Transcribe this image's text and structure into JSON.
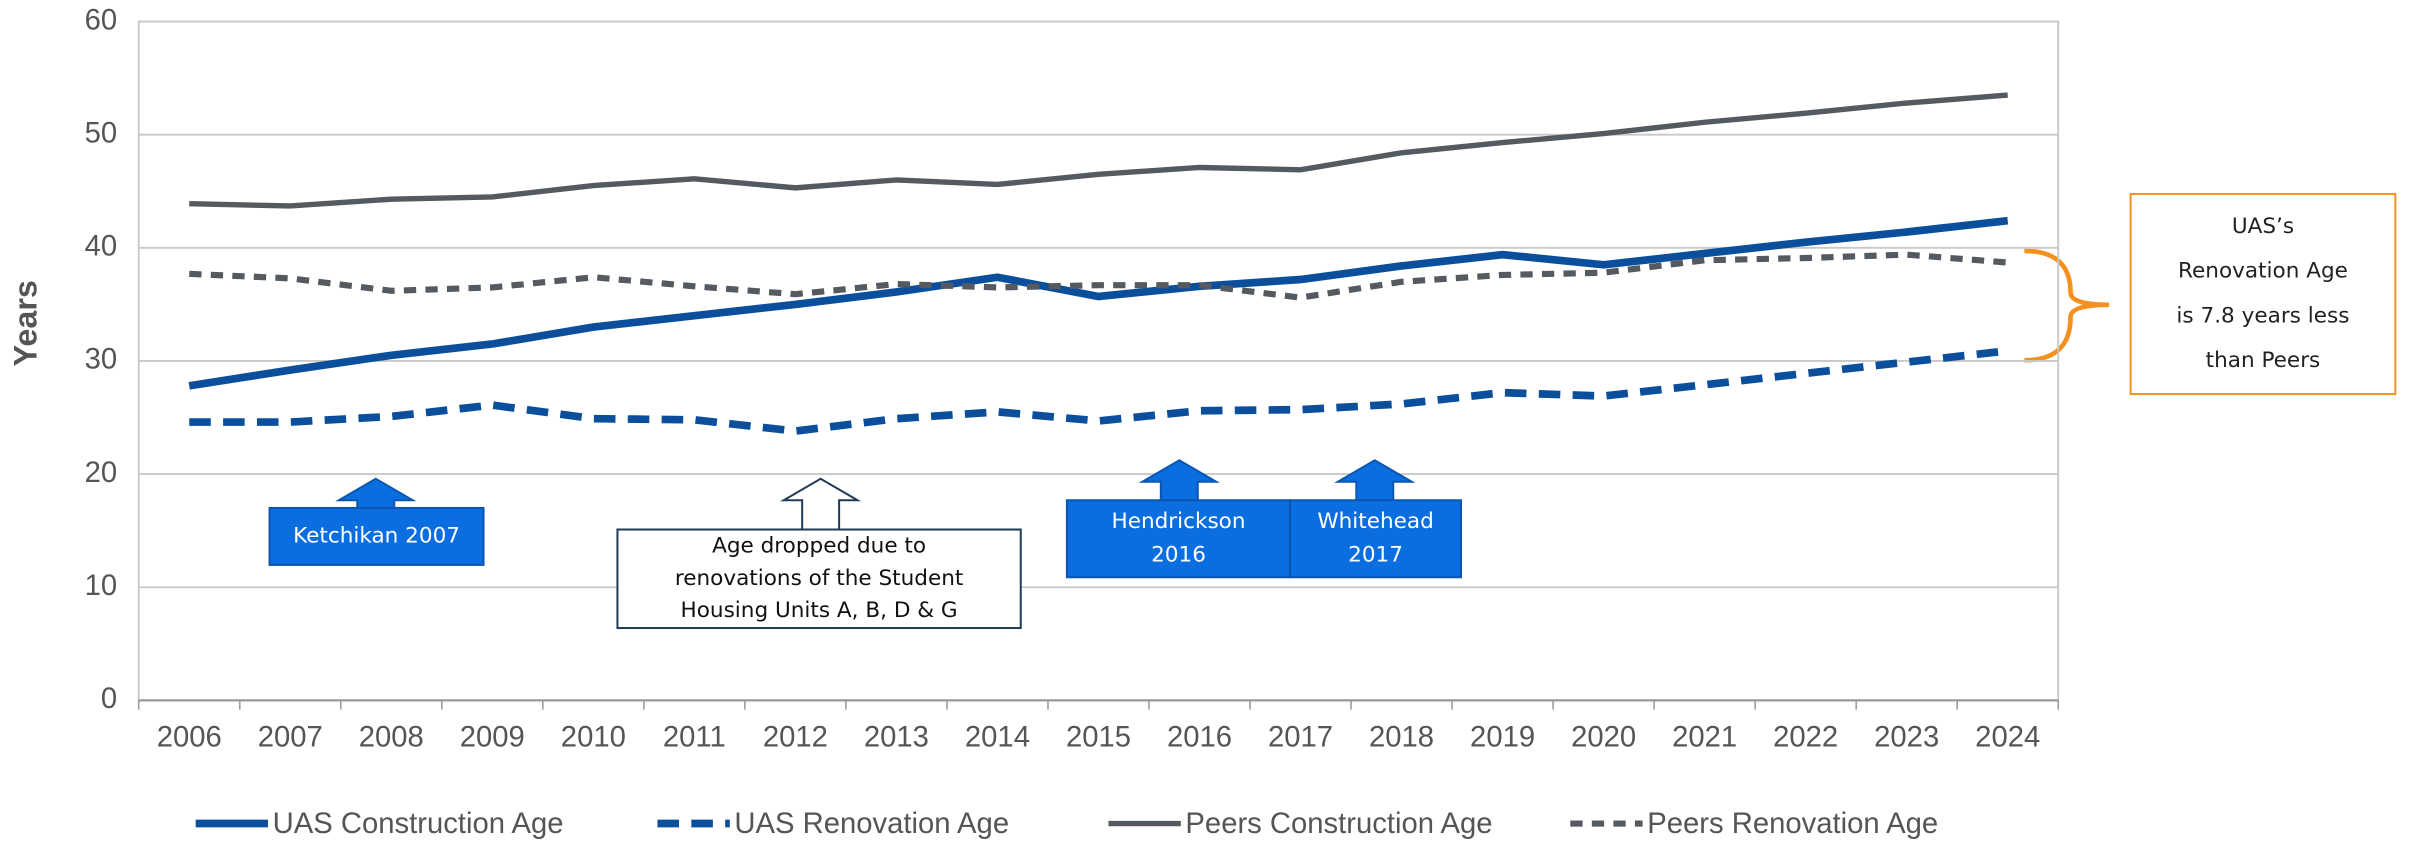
{
  "chart_data": {
    "type": "line",
    "y_label": "Years",
    "categories": [
      "2006",
      "2007",
      "2008",
      "2009",
      "2010",
      "2011",
      "2012",
      "2013",
      "2014",
      "2015",
      "2016",
      "2017",
      "2018",
      "2019",
      "2020",
      "2021",
      "2022",
      "2023",
      "2024"
    ],
    "series": [
      {
        "name": "UAS Construction Age",
        "color": "#0b4f9c",
        "style": "solid",
        "values": [
          27.8,
          29.2,
          30.5,
          31.5,
          33.0,
          34.0,
          35.0,
          36.1,
          37.4,
          35.7,
          36.6,
          37.2,
          38.4,
          39.4,
          38.5,
          39.5,
          40.5,
          41.4,
          42.4
        ]
      },
      {
        "name": "UAS Renovation Age",
        "color": "#0b4f9c",
        "style": "dashed",
        "values": [
          24.6,
          24.6,
          25.1,
          26.1,
          24.9,
          24.8,
          23.8,
          24.9,
          25.5,
          24.7,
          25.6,
          25.7,
          26.2,
          27.2,
          26.9,
          27.9,
          28.9,
          29.9,
          30.9
        ]
      },
      {
        "name": "Peers Construction Age",
        "color": "#555a60",
        "style": "solid",
        "values": [
          43.9,
          43.7,
          44.3,
          44.5,
          45.5,
          46.1,
          45.3,
          46.0,
          45.6,
          46.5,
          47.1,
          46.9,
          48.4,
          49.3,
          50.1,
          51.1,
          51.9,
          52.8,
          53.5
        ]
      },
      {
        "name": "Peers Renovation Age",
        "color": "#555a60",
        "style": "dashed",
        "values": [
          37.7,
          37.3,
          36.2,
          36.5,
          37.4,
          36.6,
          35.9,
          36.8,
          36.5,
          36.7,
          36.7,
          35.6,
          37.0,
          37.6,
          37.8,
          38.9,
          39.1,
          39.4,
          38.7
        ]
      }
    ],
    "ylim": [
      0,
      60
    ],
    "yticks": [
      0,
      10,
      20,
      30,
      40,
      50,
      60
    ],
    "grid": true,
    "annotations": [
      {
        "lines": [
          "Ketchikan 2007"
        ]
      },
      {
        "lines": [
          "Age dropped due to",
          "renovations of the Student",
          "Housing Units A, B, D & G"
        ]
      },
      {
        "lines": [
          "Hendrickson",
          "2016"
        ]
      },
      {
        "lines": [
          "Whitehead",
          "2017"
        ]
      },
      {
        "lines": [
          "UAS’s",
          "Renovation Age",
          "is 7.8 years less",
          "than Peers"
        ]
      }
    ]
  }
}
